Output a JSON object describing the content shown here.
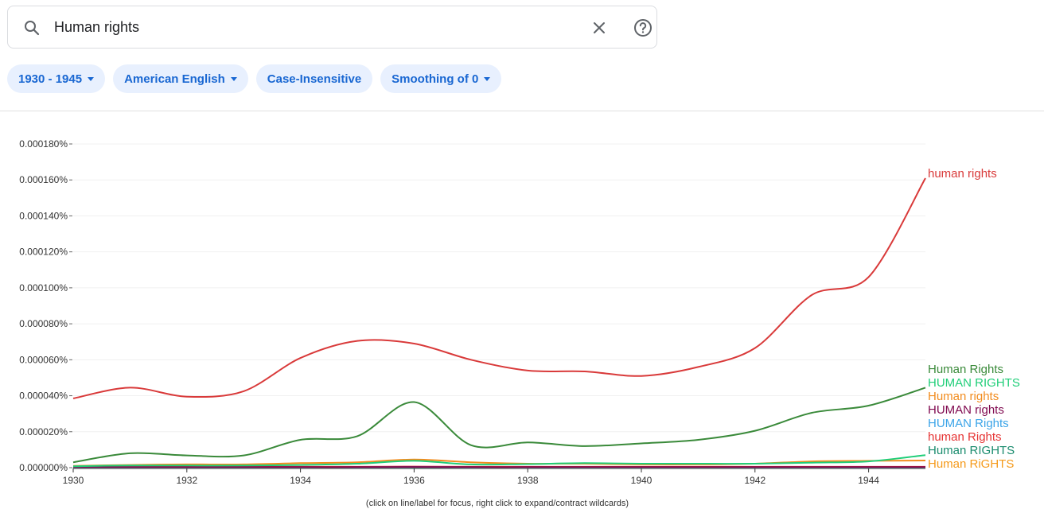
{
  "search": {
    "query": "Human rights",
    "icon": "search-icon",
    "clear_icon": "close-icon",
    "help_icon": "help-circle-icon"
  },
  "filters": [
    {
      "label": "1930 - 1945",
      "has_dropdown": true
    },
    {
      "label": "American English",
      "has_dropdown": true
    },
    {
      "label": "Case-Insensitive",
      "has_dropdown": false
    },
    {
      "label": "Smoothing of 0",
      "has_dropdown": true
    }
  ],
  "footnote": "(click on line/label for focus, right click to expand/contract wildcards)",
  "chart_data": {
    "type": "line",
    "title": "",
    "xlabel": "",
    "ylabel": "",
    "xlim": [
      1930,
      1945
    ],
    "ylim": [
      0,
      0.00018
    ],
    "x_ticks": [
      1930,
      1932,
      1934,
      1936,
      1938,
      1940,
      1942,
      1944
    ],
    "y_ticks": [
      "0.000000%",
      "0.000020%",
      "0.000040%",
      "0.000060%",
      "0.000080%",
      "0.000100%",
      "0.000120%",
      "0.000140%",
      "0.000160%",
      "0.000180%"
    ],
    "grid": "horizontal",
    "legend": "right-end labels",
    "x": [
      1930,
      1931,
      1932,
      1933,
      1934,
      1935,
      1936,
      1937,
      1938,
      1939,
      1940,
      1941,
      1942,
      1943,
      1944,
      1945
    ],
    "series": [
      {
        "name": "human rights",
        "color": "#d93a3a",
        "values": [
          3.85e-05,
          4.45e-05,
          3.95e-05,
          4.25e-05,
          6.1e-05,
          7.05e-05,
          6.9e-05,
          6e-05,
          5.4e-05,
          5.35e-05,
          5.1e-05,
          5.6e-05,
          6.65e-05,
          9.6e-05,
          0.000106,
          0.000161
        ]
      },
      {
        "name": "Human Rights",
        "color": "#3a8a3a",
        "values": [
          3e-06,
          8e-06,
          6.8e-06,
          6.8e-06,
          1.55e-05,
          1.75e-05,
          3.65e-05,
          1.25e-05,
          1.4e-05,
          1.2e-05,
          1.35e-05,
          1.55e-05,
          2.05e-05,
          3.05e-05,
          3.45e-05,
          4.45e-05
        ]
      },
      {
        "name": "HUMAN RIGHTS",
        "color": "#1fce78",
        "values": [
          8e-07,
          1.2e-06,
          1.2e-06,
          1.2e-06,
          1.5e-06,
          2.2e-06,
          3.8e-06,
          1.8e-06,
          2e-06,
          2.5e-06,
          2.2e-06,
          2.2e-06,
          2.2e-06,
          2.8e-06,
          3.5e-06,
          7e-06
        ]
      },
      {
        "name": "Human rights",
        "color": "#f28c1e",
        "values": [
          1e-06,
          1.5e-06,
          1.8e-06,
          1.8e-06,
          2.5e-06,
          3e-06,
          4.5e-06,
          3e-06,
          2.2e-06,
          2.2e-06,
          1.8e-06,
          1.8e-06,
          2.2e-06,
          3.5e-06,
          3.8e-06,
          4e-06
        ]
      },
      {
        "name": "HUMAN rights",
        "color": "#800a50",
        "values": [
          3e-07,
          3e-07,
          3e-07,
          3e-07,
          3e-07,
          3e-07,
          4e-07,
          3e-07,
          3e-07,
          3e-07,
          3e-07,
          3e-07,
          3e-07,
          3e-07,
          3e-07,
          3e-07
        ]
      },
      {
        "name": "HUMAN Rights",
        "color": "#3ba4e8",
        "values": [
          2e-07,
          2e-07,
          2e-07,
          2e-07,
          2e-07,
          2e-07,
          3e-07,
          2e-07,
          2e-07,
          2e-07,
          2e-07,
          2e-07,
          2e-07,
          2e-07,
          2e-07,
          2e-07
        ]
      },
      {
        "name": "human Rights",
        "color": "#e63333",
        "values": [
          4e-07,
          4e-07,
          5e-07,
          5e-07,
          5e-07,
          5e-07,
          6e-07,
          5e-07,
          5e-07,
          5e-07,
          5e-07,
          5e-07,
          5e-07,
          5e-07,
          5e-07,
          5e-07
        ]
      },
      {
        "name": "Human RIGHTS",
        "color": "#1a8c6e",
        "values": [
          1e-07,
          1e-07,
          1e-07,
          1e-07,
          1e-07,
          1e-07,
          1e-07,
          1e-07,
          1e-07,
          1e-07,
          1e-07,
          1e-07,
          1e-07,
          1e-07,
          1e-07,
          1e-07
        ]
      },
      {
        "name": "Human RiGHTS",
        "color": "#f59a1a",
        "values": [
          1e-07,
          1e-07,
          1e-07,
          1e-07,
          1e-07,
          1e-07,
          1e-07,
          1e-07,
          1e-07,
          1e-07,
          1e-07,
          1e-07,
          1e-07,
          1e-07,
          1e-07,
          1e-07
        ]
      }
    ]
  }
}
